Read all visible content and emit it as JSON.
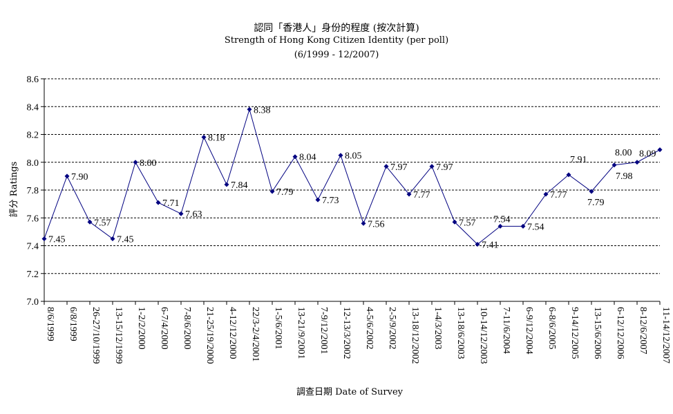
{
  "chart_data": {
    "type": "line",
    "title": "認同「香港人」身份的程度 (按次計算)",
    "subtitle": "Strength of Hong Kong Citizen Identity (per poll)",
    "subtitle2": "(6/1999 - 12/2007)",
    "xlabel": "調查日期 Date of Survey",
    "ylabel": "評分 Ratings",
    "ylim": [
      7.0,
      8.6
    ],
    "yticks": [
      "7.0",
      "7.2",
      "7.4",
      "7.6",
      "7.8",
      "8.0",
      "8.2",
      "8.4",
      "8.6"
    ],
    "grid": true,
    "legend": "none",
    "series_color": "#000080",
    "categories": [
      "8/6/1999",
      "6/8/1999",
      "26-27/10/1999",
      "13-15/12/1999",
      "1-2/2/2000",
      "6-7/4/2000",
      "7-8/6/2000",
      "21-25/19/2000",
      "4-12/12/2000",
      "22/3-2/4/2001",
      "1-5/6/2001",
      "13-21/9/2001",
      "7-9/12/2001",
      "12-13/3/2002",
      "4-5/6/2002",
      "2-5/9/2002",
      "13-18/12/2002",
      "1-4/3/2003",
      "13-18/6/2003",
      "10-14/12/2003",
      "7-11/6/2004",
      "6-9/12/2004",
      "6-8/6/2005",
      "9-14/12/2005",
      "13-15/6/2006",
      "6-12/12/2006",
      "8-12/6/2007",
      "11-14/12/2007"
    ],
    "values": [
      7.45,
      7.9,
      7.57,
      7.45,
      8.0,
      7.71,
      7.63,
      8.18,
      7.84,
      8.38,
      7.79,
      8.04,
      7.73,
      8.05,
      7.56,
      7.97,
      7.77,
      7.97,
      7.57,
      7.41,
      7.54,
      7.54,
      7.77,
      7.91,
      7.79,
      7.98,
      8.0,
      8.09
    ],
    "labels": [
      "7.45",
      "7.90",
      "7.57",
      "7.45",
      "8.00",
      "7.71",
      "7.63",
      "8.18",
      "7.84",
      "8.38",
      "7.79",
      "8.04",
      "7.73",
      "8.05",
      "7.56",
      "7.97",
      "7.77",
      "7.97",
      "7.57",
      "7.41",
      "7.54",
      "7.54",
      "7.77",
      "7.91",
      "7.79",
      "7.98",
      "8.00",
      "8.09"
    ]
  }
}
